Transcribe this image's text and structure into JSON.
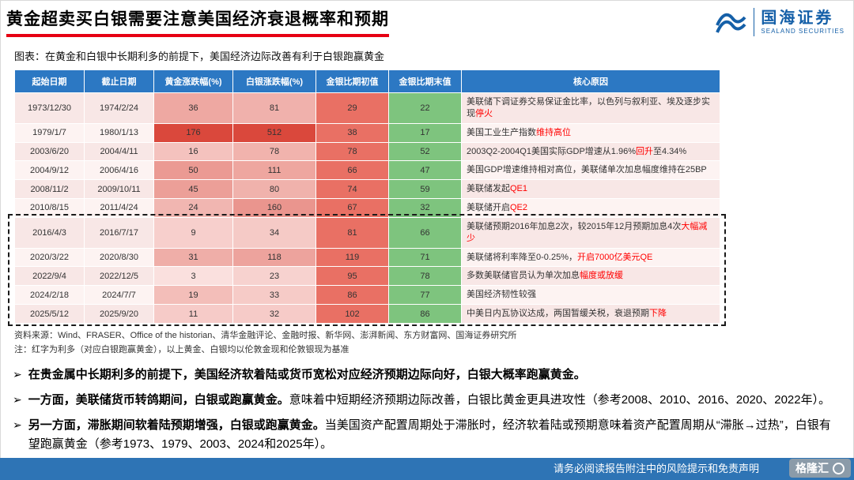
{
  "page": {
    "title": "黄金超卖买白银需要注意美国经济衰退概率和预期",
    "caption": "图表：在黄金和白银中长期利多的前提下，美国经济边际改善有利于白银跑赢黄金",
    "footer_disclaimer": "请务必阅读报告附注中的风险提示和免责声明",
    "watermark": "格隆汇"
  },
  "logo": {
    "name_cn": "国海证券",
    "name_en": "SEALAND SECURITIES"
  },
  "colors": {
    "title_underline": "#e60012",
    "table_header_bg": "#2c78c3",
    "ratio_start_bg": "#e97064",
    "ratio_end_bg": "#7ec47e",
    "heat_low": "#fff7f6",
    "heat_high": "#da483c",
    "footer_bg": "#2e74b5",
    "red_text": "#ff0000",
    "logo_blue": "#1560a8"
  },
  "table": {
    "headers": [
      "起始日期",
      "截止日期",
      "黄金涨跌幅(%)",
      "白银涨跌幅(%)",
      "金银比期初值",
      "金银比期末值",
      "核心原因"
    ],
    "highlight": {
      "from": 6,
      "to": 10
    },
    "rows": [
      {
        "start": "1973/12/30",
        "end": "1974/2/24",
        "gold": 36,
        "silver": 81,
        "ratio_start": 29,
        "ratio_end": 22,
        "reason": [
          {
            "text": "美联储下调证券交易保证金比率，以色列与叙利亚、埃及逐步实现",
            "red": false
          },
          {
            "text": "停火",
            "red": true
          }
        ]
      },
      {
        "start": "1979/1/7",
        "end": "1980/1/13",
        "gold": 176,
        "silver": 512,
        "ratio_start": 38,
        "ratio_end": 17,
        "reason": [
          {
            "text": "美国工业生产指数",
            "red": false
          },
          {
            "text": "维持高位",
            "red": true
          }
        ]
      },
      {
        "start": "2003/6/20",
        "end": "2004/4/11",
        "gold": 16,
        "silver": 78,
        "ratio_start": 78,
        "ratio_end": 52,
        "reason": [
          {
            "text": "2003Q2-2004Q1美国实际GDP增速从1.96%",
            "red": false
          },
          {
            "text": "回升",
            "red": true
          },
          {
            "text": "至4.34%",
            "red": false
          }
        ]
      },
      {
        "start": "2004/9/12",
        "end": "2006/4/16",
        "gold": 50,
        "silver": 111,
        "ratio_start": 66,
        "ratio_end": 47,
        "reason": [
          {
            "text": "美国GDP增速维持相对高位，美联储单次加息幅度维持在25BP",
            "red": false
          }
        ]
      },
      {
        "start": "2008/11/2",
        "end": "2009/10/11",
        "gold": 45,
        "silver": 80,
        "ratio_start": 74,
        "ratio_end": 59,
        "reason": [
          {
            "text": "美联储发起",
            "red": false
          },
          {
            "text": "QE1",
            "red": true
          }
        ]
      },
      {
        "start": "2010/8/15",
        "end": "2011/4/24",
        "gold": 24,
        "silver": 160,
        "ratio_start": 67,
        "ratio_end": 32,
        "reason": [
          {
            "text": "美联储开启",
            "red": false
          },
          {
            "text": "QE2",
            "red": true
          }
        ]
      },
      {
        "start": "2016/4/3",
        "end": "2016/7/17",
        "gold": 9,
        "silver": 34,
        "ratio_start": 81,
        "ratio_end": 66,
        "reason": [
          {
            "text": "美联储预期2016年加息2次，较2015年12月预期加息4次",
            "red": false
          },
          {
            "text": "大幅减少",
            "red": true
          }
        ]
      },
      {
        "start": "2020/3/22",
        "end": "2020/8/30",
        "gold": 31,
        "silver": 118,
        "ratio_start": 119,
        "ratio_end": 71,
        "reason": [
          {
            "text": "美联储将利率降至0-0.25%，",
            "red": false
          },
          {
            "text": "开启7000亿美元QE",
            "red": true
          }
        ]
      },
      {
        "start": "2022/9/4",
        "end": "2022/12/5",
        "gold": 3,
        "silver": 23,
        "ratio_start": 95,
        "ratio_end": 78,
        "reason": [
          {
            "text": "多数美联储官员认为单次加息",
            "red": false
          },
          {
            "text": "幅度或放缓",
            "red": true
          }
        ]
      },
      {
        "start": "2024/2/18",
        "end": "2024/7/7",
        "gold": 19,
        "silver": 33,
        "ratio_start": 86,
        "ratio_end": 77,
        "reason": [
          {
            "text": "美国经济韧性较强",
            "red": false
          }
        ]
      },
      {
        "start": "2025/5/12",
        "end": "2025/9/20",
        "gold": 11,
        "silver": 32,
        "ratio_start": 102,
        "ratio_end": 86,
        "reason": [
          {
            "text": "中美日内瓦协议达成，两国暂缓关税，衰退预期",
            "red": false
          },
          {
            "text": "下降",
            "red": true
          }
        ]
      }
    ]
  },
  "source": "资料来源：Wind、FRASER、Office of the historian、清华金融评论、金融时报、新华网、澎湃新闻、东方财富网、国海证券研究所",
  "note": "注：红字为利多（对应白银跑赢黄金），以上黄金、白银均以伦敦金现和伦敦银现为基准",
  "bullets": [
    {
      "bold": "在贵金属中长期利多的前提下，美国经济软着陆或货币宽松对应经济预期边际向好，白银大概率跑赢黄金。",
      "rest": ""
    },
    {
      "bold": "一方面，美联储货币转鸽期间，白银或跑赢黄金。",
      "rest": "意味着中短期经济预期边际改善，白银比黄金更具进攻性（参考2008、2010、2016、2020、2022年）。"
    },
    {
      "bold": "另一方面，滞胀期间软着陆预期增强，白银或跑赢黄金。",
      "rest": "当美国资产配置周期处于滞胀时，经济软着陆或预期意味着资产配置周期从“滞胀→过热”，白银有望跑赢黄金（参考1973、1979、2003、2024和2025年）。"
    }
  ]
}
